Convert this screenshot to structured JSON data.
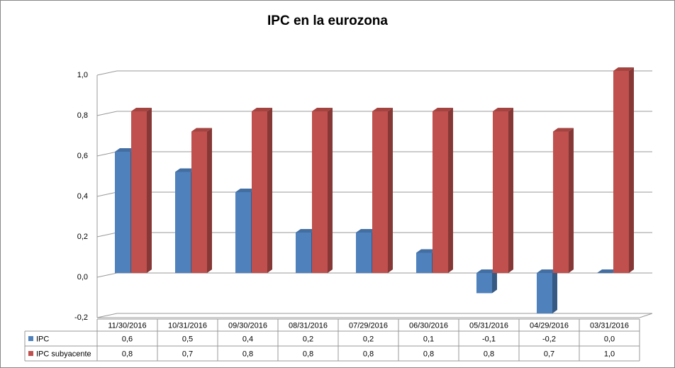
{
  "chart_data": {
    "type": "bar3d",
    "title": "IPC en la eurozona",
    "categories": [
      "11/30/2016",
      "10/31/2016",
      "09/30/2016",
      "08/31/2016",
      "07/29/2016",
      "06/30/2016",
      "05/31/2016",
      "04/29/2016",
      "03/31/2016"
    ],
    "series": [
      {
        "name": "IPC",
        "color": "#4f81bd",
        "values": [
          0.6,
          0.5,
          0.4,
          0.2,
          0.2,
          0.1,
          -0.1,
          -0.2,
          0.0
        ],
        "value_labels": [
          "0,6",
          "0,5",
          "0,4",
          "0,2",
          "0,2",
          "0,1",
          "-0,1",
          "-0,2",
          "0,0"
        ]
      },
      {
        "name": "IPC subyacente",
        "color": "#c0504d",
        "values": [
          0.8,
          0.7,
          0.8,
          0.8,
          0.8,
          0.8,
          0.8,
          0.7,
          1.0
        ],
        "value_labels": [
          "0,8",
          "0,7",
          "0,8",
          "0,8",
          "0,8",
          "0,8",
          "0,8",
          "0,7",
          "1,0"
        ]
      }
    ],
    "ylim": [
      -0.2,
      1.0
    ],
    "yticks": [
      {
        "value": -0.2,
        "label": "-0,2"
      },
      {
        "value": 0.0,
        "label": "0,0"
      },
      {
        "value": 0.2,
        "label": "0,2"
      },
      {
        "value": 0.4,
        "label": "0,4"
      },
      {
        "value": 0.6,
        "label": "0,6"
      },
      {
        "value": 0.8,
        "label": "0,8"
      },
      {
        "value": 1.0,
        "label": "1,0"
      }
    ],
    "grid": true,
    "data_table": true
  }
}
